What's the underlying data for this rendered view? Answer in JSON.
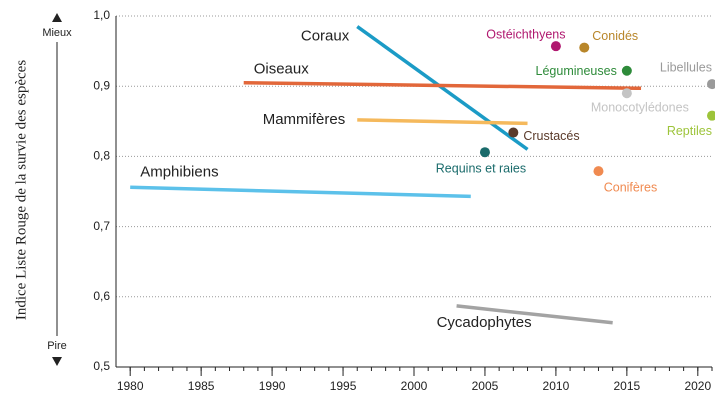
{
  "chart_data": {
    "type": "line",
    "y_label": "Indice Liste Rouge de la survie des espèces",
    "y_top_note": "Mieux",
    "y_bottom_note": "Pire",
    "xlim": [
      1979,
      2021
    ],
    "xticks": [
      1980,
      1985,
      1990,
      1995,
      2000,
      2005,
      2010,
      2015,
      2020
    ],
    "xminorticks": [
      1980,
      1981,
      1982,
      1983,
      1984,
      1985,
      1986,
      1987,
      1988,
      1989,
      1990,
      1991,
      1992,
      1993,
      1994,
      1995,
      1996,
      1997,
      1998,
      1999,
      2000,
      2001,
      2002,
      2003,
      2004,
      2005,
      2006,
      2007,
      2008,
      2009,
      2010,
      2011,
      2012,
      2013,
      2014,
      2015,
      2016,
      2017,
      2018,
      2019,
      2020,
      2021
    ],
    "ylim": [
      0.5,
      1.0
    ],
    "yticks": [
      {
        "value": 0.5,
        "label": "0,5"
      },
      {
        "value": 0.6,
        "label": "0,6"
      },
      {
        "value": 0.7,
        "label": "0,7"
      },
      {
        "value": 0.8,
        "label": "0,8"
      },
      {
        "value": 0.9,
        "label": "0,9"
      },
      {
        "value": 1.0,
        "label": "1,0"
      }
    ],
    "grid": true,
    "series": [
      {
        "name": "Coraux",
        "color": "#1b9bc6",
        "x": [
          1996,
          2008
        ],
        "values": [
          0.985,
          0.81
        ]
      },
      {
        "name": "Oiseaux",
        "color": "#e2673a",
        "x": [
          1988,
          2016
        ],
        "values": [
          0.905,
          0.897
        ]
      },
      {
        "name": "Mammifères",
        "color": "#f5b95c",
        "x": [
          1996,
          2008
        ],
        "values": [
          0.852,
          0.847
        ]
      },
      {
        "name": "Amphibiens",
        "color": "#5cc1ea",
        "x": [
          1980,
          2004
        ],
        "values": [
          0.756,
          0.743
        ]
      },
      {
        "name": "Cycadophytes",
        "color": "#a3a3a3",
        "x": [
          2003,
          2014
        ],
        "values": [
          0.587,
          0.563
        ]
      }
    ],
    "points": [
      {
        "name": "Ostéichthyens",
        "color": "#b0186f",
        "x": 2010,
        "value": 0.957
      },
      {
        "name": "Conidés",
        "color": "#b8862a",
        "x": 2012,
        "value": 0.955
      },
      {
        "name": "Légumineuses",
        "color": "#2e8b3a",
        "x": 2015,
        "value": 0.922
      },
      {
        "name": "Libellules",
        "color": "#9a9a9a",
        "x": 2021,
        "value": 0.903
      },
      {
        "name": "Monocotylédones",
        "color": "#c4c4c4",
        "x": 2015,
        "value": 0.89
      },
      {
        "name": "Reptiles",
        "color": "#9dc43a",
        "x": 2021,
        "value": 0.858
      },
      {
        "name": "Crustacés",
        "color": "#5a3a2a",
        "x": 2007,
        "value": 0.834
      },
      {
        "name": "Requins et raies",
        "color": "#1a6b6b",
        "x": 2005,
        "value": 0.806
      },
      {
        "name": "Conifères",
        "color": "#f08a50",
        "x": 2013,
        "value": 0.779
      }
    ]
  }
}
